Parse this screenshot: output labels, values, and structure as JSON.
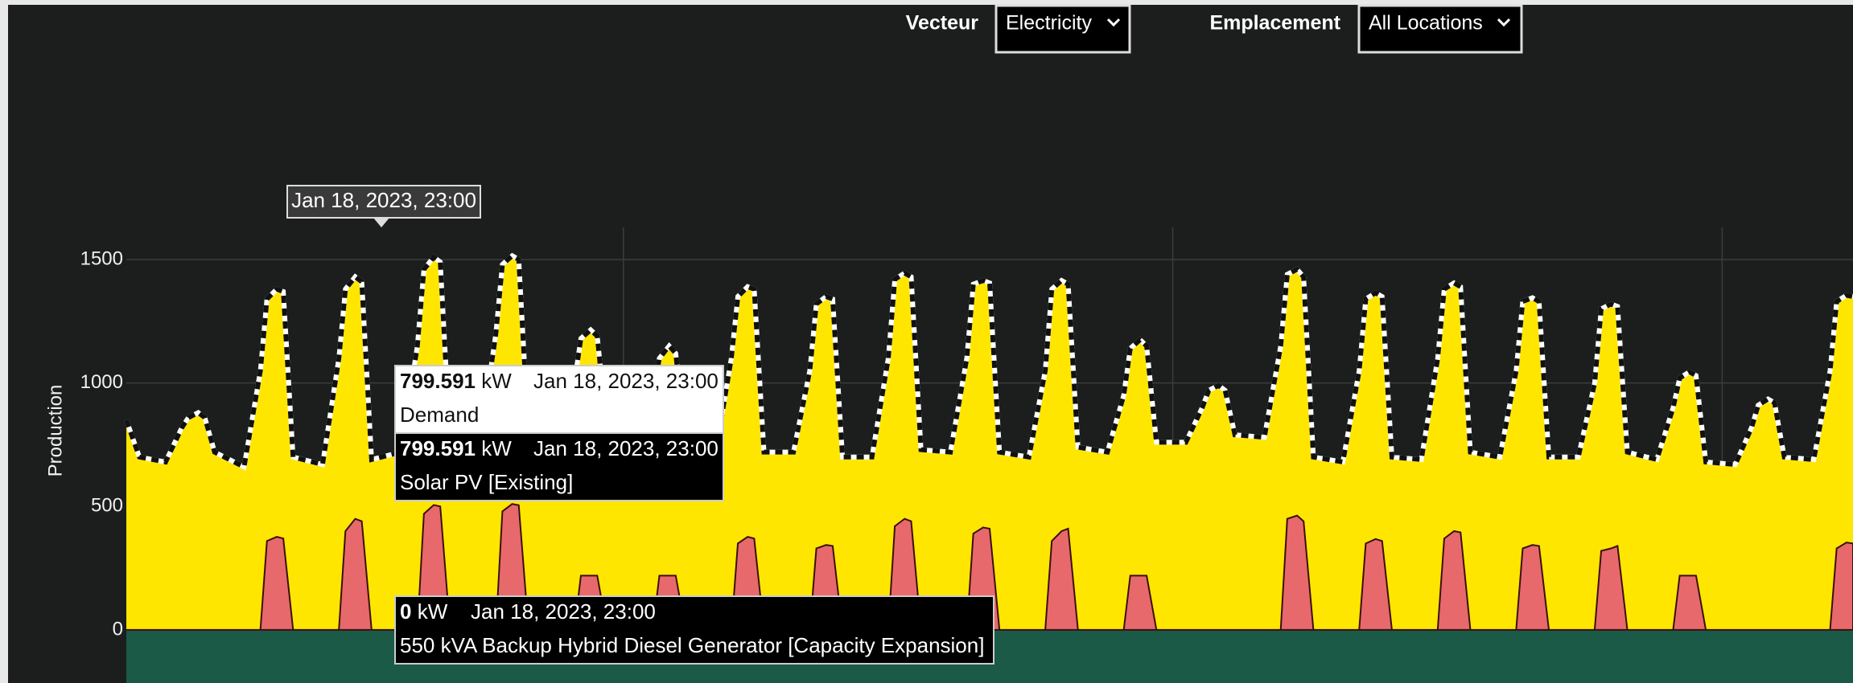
{
  "controls": [
    {
      "label": "Vecteur",
      "value": "Electricity"
    },
    {
      "label": "Emplacement",
      "value": "All Locations"
    }
  ],
  "chart_data": {
    "type": "area",
    "ylabel": "Production",
    "xlim": [
      0,
      528
    ],
    "xgrid": [
      152,
      320,
      488
    ],
    "ylim": [
      -215,
      1630
    ],
    "yticks": [
      0,
      500,
      1000,
      1500
    ],
    "grid": true,
    "x": [
      0,
      4,
      12,
      17,
      19,
      22,
      24,
      27,
      36,
      41,
      43,
      46,
      48,
      51,
      60,
      65,
      67,
      70,
      72,
      75,
      84,
      89,
      91,
      94,
      96,
      99,
      108,
      113,
      115,
      118,
      120,
      123,
      132,
      137,
      139,
      142,
      144,
      147,
      156,
      161,
      163,
      166,
      168,
      171,
      180,
      185,
      187,
      190,
      192,
      195,
      204,
      209,
      211,
      214,
      216,
      219,
      228,
      233,
      235,
      238,
      240,
      243,
      252,
      257,
      259,
      262,
      264,
      267,
      276,
      281,
      283,
      286,
      288,
      291,
      300,
      305,
      307,
      310,
      312,
      315,
      324,
      329,
      331,
      334,
      336,
      339,
      348,
      353,
      355,
      358,
      360,
      363,
      372,
      377,
      379,
      382,
      384,
      387,
      396,
      401,
      403,
      406,
      408,
      411,
      420,
      425,
      427,
      430,
      432,
      435,
      444,
      449,
      451,
      454,
      456,
      459,
      468,
      473,
      475,
      478,
      480,
      483,
      492,
      497,
      499,
      502,
      504,
      507,
      516,
      521,
      523,
      526,
      528
    ],
    "series": [
      {
        "color": "#ffe600",
        "values": [
          850,
          700,
          680,
          820,
          860,
          880,
          860,
          720,
          660,
          1050,
          1340,
          1380,
          1370,
          700,
          670,
          1100,
          1380,
          1430,
          1410,
          690,
          720,
          1150,
          1460,
          1510,
          1490,
          760,
          740,
          1200,
          1480,
          1515,
          1500,
          780,
          760,
          1000,
          1180,
          1215,
          1190,
          800,
          780,
          950,
          1100,
          1150,
          1120,
          760,
          700,
          1100,
          1350,
          1390,
          1380,
          720,
          720,
          1050,
          1320,
          1350,
          1340,
          700,
          700,
          1100,
          1420,
          1445,
          1430,
          730,
          720,
          1100,
          1400,
          1415,
          1405,
          720,
          700,
          1050,
          1380,
          1415,
          1400,
          740,
          720,
          950,
          1140,
          1175,
          1150,
          760,
          760,
          900,
          970,
          990,
          970,
          790,
          780,
          1150,
          1440,
          1460,
          1430,
          700,
          680,
          1050,
          1340,
          1365,
          1350,
          700,
          690,
          1100,
          1380,
          1405,
          1390,
          720,
          700,
          1050,
          1330,
          1345,
          1330,
          700,
          700,
          1000,
          1300,
          1320,
          1310,
          720,
          690,
          900,
          1020,
          1045,
          1030,
          680,
          670,
          820,
          910,
          935,
          920,
          700,
          690,
          1050,
          1330,
          1355,
          1350
        ]
      },
      {
        "color": "#e8696b",
        "values": [
          0,
          0,
          0,
          0,
          0,
          0,
          0,
          0,
          0,
          0,
          360,
          377,
          370,
          0,
          0,
          0,
          400,
          450,
          440,
          0,
          0,
          0,
          470,
          506,
          500,
          0,
          0,
          0,
          480,
          510,
          505,
          0,
          0,
          0,
          220,
          220,
          220,
          0,
          0,
          0,
          220,
          220,
          220,
          0,
          0,
          0,
          350,
          377,
          370,
          0,
          0,
          0,
          330,
          344,
          340,
          0,
          0,
          0,
          420,
          450,
          440,
          0,
          0,
          0,
          390,
          415,
          410,
          0,
          0,
          0,
          360,
          400,
          410,
          0,
          0,
          0,
          220,
          220,
          220,
          0,
          0,
          0,
          0,
          0,
          0,
          0,
          0,
          0,
          450,
          463,
          440,
          0,
          0,
          0,
          350,
          368,
          360,
          0,
          0,
          0,
          370,
          400,
          395,
          0,
          0,
          0,
          330,
          344,
          340,
          0,
          0,
          0,
          320,
          330,
          340,
          0,
          0,
          0,
          220,
          220,
          220,
          0,
          0,
          0,
          0,
          0,
          0,
          0,
          0,
          0,
          330,
          354,
          350
        ]
      }
    ]
  },
  "tooltips": {
    "date": "Jan 18, 2023, 23:00",
    "items": [
      {
        "value": 799.591,
        "unit": "kW",
        "date": "Jan 18, 2023, 23:00",
        "name": "Demand"
      },
      {
        "value": 799.591,
        "unit": "kW",
        "date": "Jan 18, 2023, 23:00",
        "name": "Solar PV [Existing]"
      },
      {
        "value": 0,
        "unit": "kW",
        "date": "Jan 18, 2023, 23:00",
        "name": "550 kVA Backup Hybrid Diesel Generator  [Capacity Expansion]"
      }
    ]
  }
}
